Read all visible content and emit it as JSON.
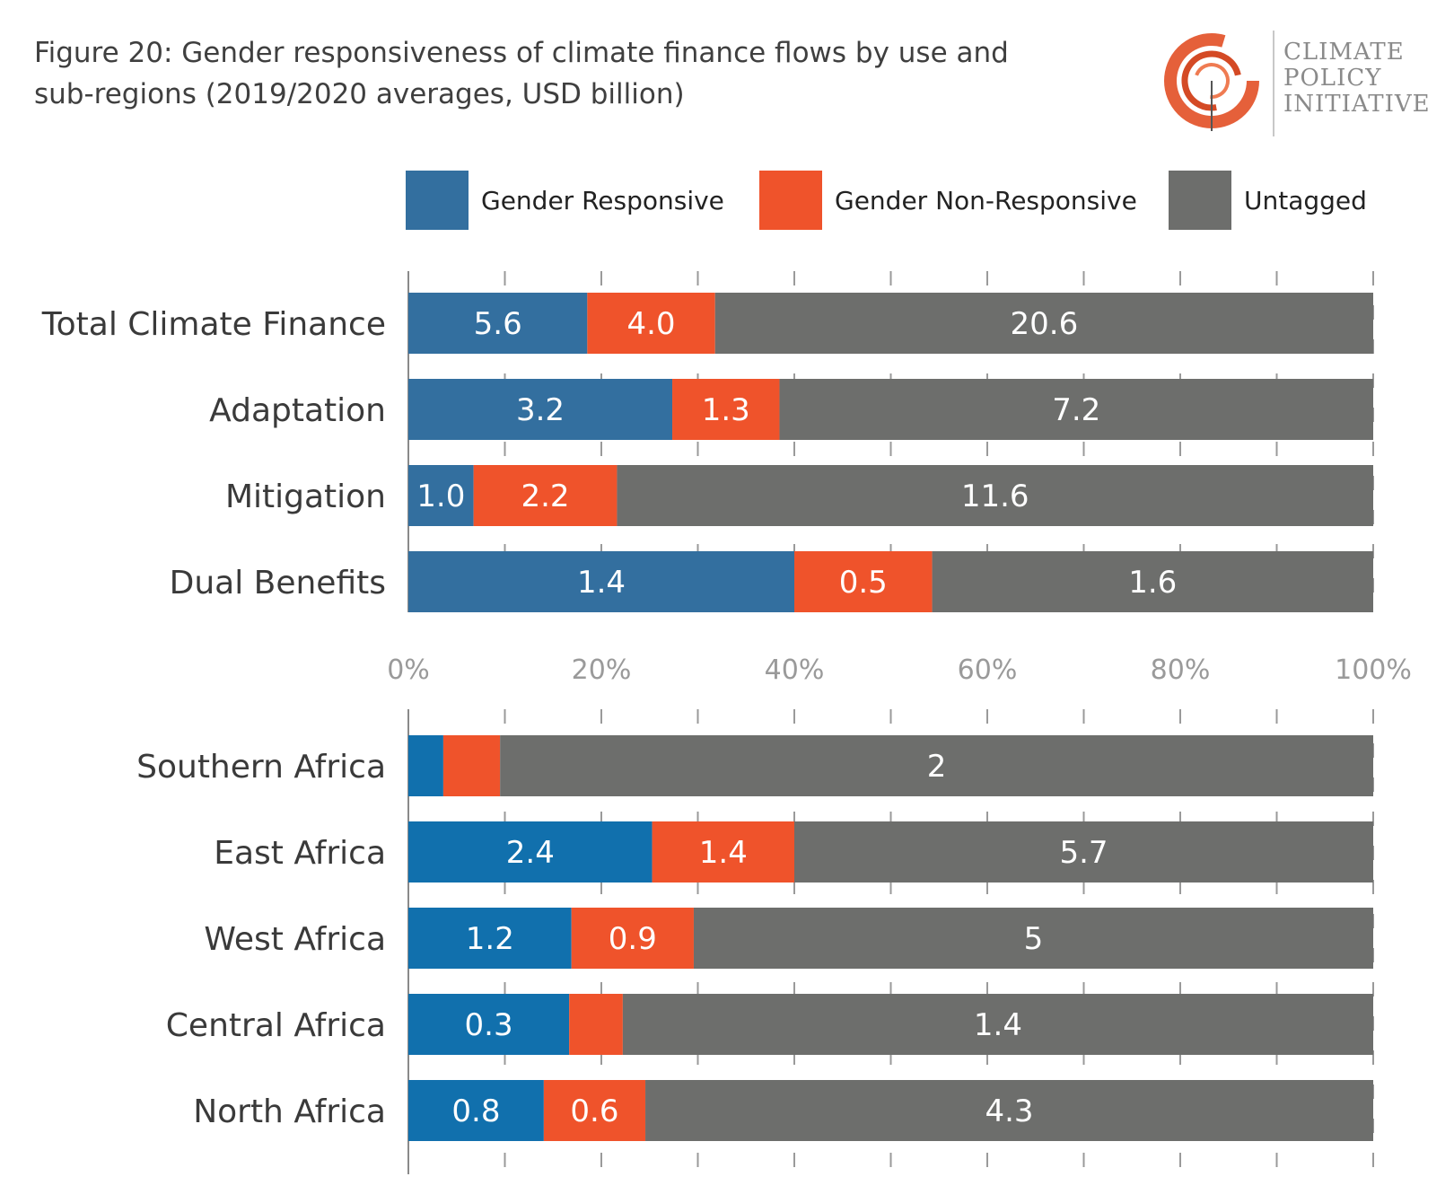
{
  "title": "Figure 20: Gender responsiveness of climate finance flows by use and sub-regions (2019/2020 averages, USD billion)",
  "logo": {
    "lines": [
      "CLIMATE",
      "POLICY",
      "INITIATIVE"
    ]
  },
  "colors": {
    "responsive": "#336f9f",
    "responsive_regions": "#1170ad",
    "non_responsive": "#ef532b",
    "untagged": "#6d6e6c",
    "grid": "#9a9a9a"
  },
  "legend": [
    {
      "label": "Gender Responsive",
      "color": "#336f9f"
    },
    {
      "label": "Gender Non-Responsive",
      "color": "#ef532b"
    },
    {
      "label": "Untagged",
      "color": "#6d6e6c"
    }
  ],
  "chart_data": [
    {
      "type": "bar",
      "orientation": "horizontal",
      "stacked": "percent",
      "categories": [
        "Total Climate Finance",
        "Adaptation",
        "Mitigation",
        "Dual Benefits"
      ],
      "series": [
        {
          "name": "Gender Responsive",
          "values": [
            5.6,
            3.2,
            1.0,
            1.4
          ],
          "labels": [
            "5.6",
            "3.2",
            "1.0",
            "1.4"
          ]
        },
        {
          "name": "Gender Non-Responsive",
          "values": [
            4.0,
            1.3,
            2.2,
            0.5
          ],
          "labels": [
            "4.0",
            "1.3",
            "2.2",
            "0.5"
          ]
        },
        {
          "name": "Untagged",
          "values": [
            20.6,
            7.2,
            11.6,
            1.6
          ],
          "labels": [
            "20.6",
            "7.2",
            "11.6",
            "1.6"
          ]
        }
      ],
      "xlim": [
        0,
        100
      ],
      "xticks": [
        "0%",
        "20%",
        "40%",
        "60%",
        "80%",
        "100%"
      ]
    },
    {
      "type": "bar",
      "orientation": "horizontal",
      "stacked": "percent",
      "categories": [
        "Southern Africa",
        "East Africa",
        "West Africa",
        "Central Africa",
        "North Africa"
      ],
      "series": [
        {
          "name": "Gender Responsive",
          "values": [
            0.08,
            2.4,
            1.2,
            0.3,
            0.8
          ],
          "labels": [
            "",
            "2.4",
            "1.2",
            "0.3",
            "0.8"
          ]
        },
        {
          "name": "Gender Non-Responsive",
          "values": [
            0.13,
            1.4,
            0.9,
            0.1,
            0.6
          ],
          "labels": [
            "",
            "1.4",
            "0.9",
            "",
            "0.6"
          ]
        },
        {
          "name": "Untagged",
          "values": [
            2,
            5.7,
            5,
            1.4,
            4.3
          ],
          "labels": [
            "2",
            "5.7",
            "5",
            "1.4",
            "4.3"
          ]
        }
      ],
      "xlim": [
        0,
        100
      ]
    }
  ]
}
